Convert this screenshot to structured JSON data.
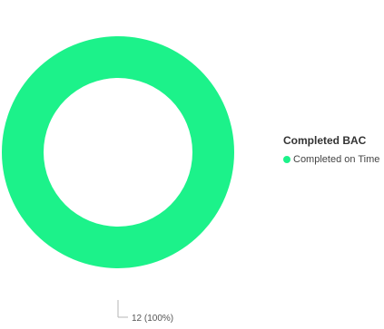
{
  "chart_data": {
    "type": "pie",
    "variant": "donut",
    "legend_title": "Completed BAC",
    "legend_placement": "right",
    "slices": [
      {
        "name": "Completed on Time",
        "value": 12,
        "percent": 100,
        "label": "12 (100%)",
        "color": "#1cf28a"
      }
    ]
  }
}
